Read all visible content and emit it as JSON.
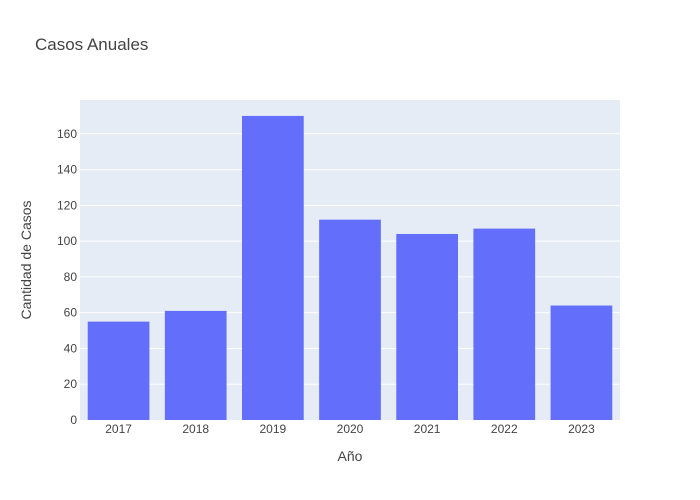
{
  "chart_data": {
    "type": "bar",
    "title": "Casos Anuales",
    "xlabel": "Año",
    "ylabel": "Cantidad de Casos",
    "categories": [
      "2017",
      "2018",
      "2019",
      "2020",
      "2021",
      "2022",
      "2023"
    ],
    "values": [
      55,
      61,
      170,
      112,
      104,
      107,
      64
    ],
    "ylim": [
      0,
      178.9
    ],
    "yticks": [
      0,
      20,
      40,
      60,
      80,
      100,
      120,
      140,
      160
    ],
    "grid": true,
    "legend": "none",
    "colors": {
      "bar": "#636efa",
      "plot_background": "#e5ecf6",
      "grid": "#ffffff",
      "text": "#444444"
    }
  }
}
